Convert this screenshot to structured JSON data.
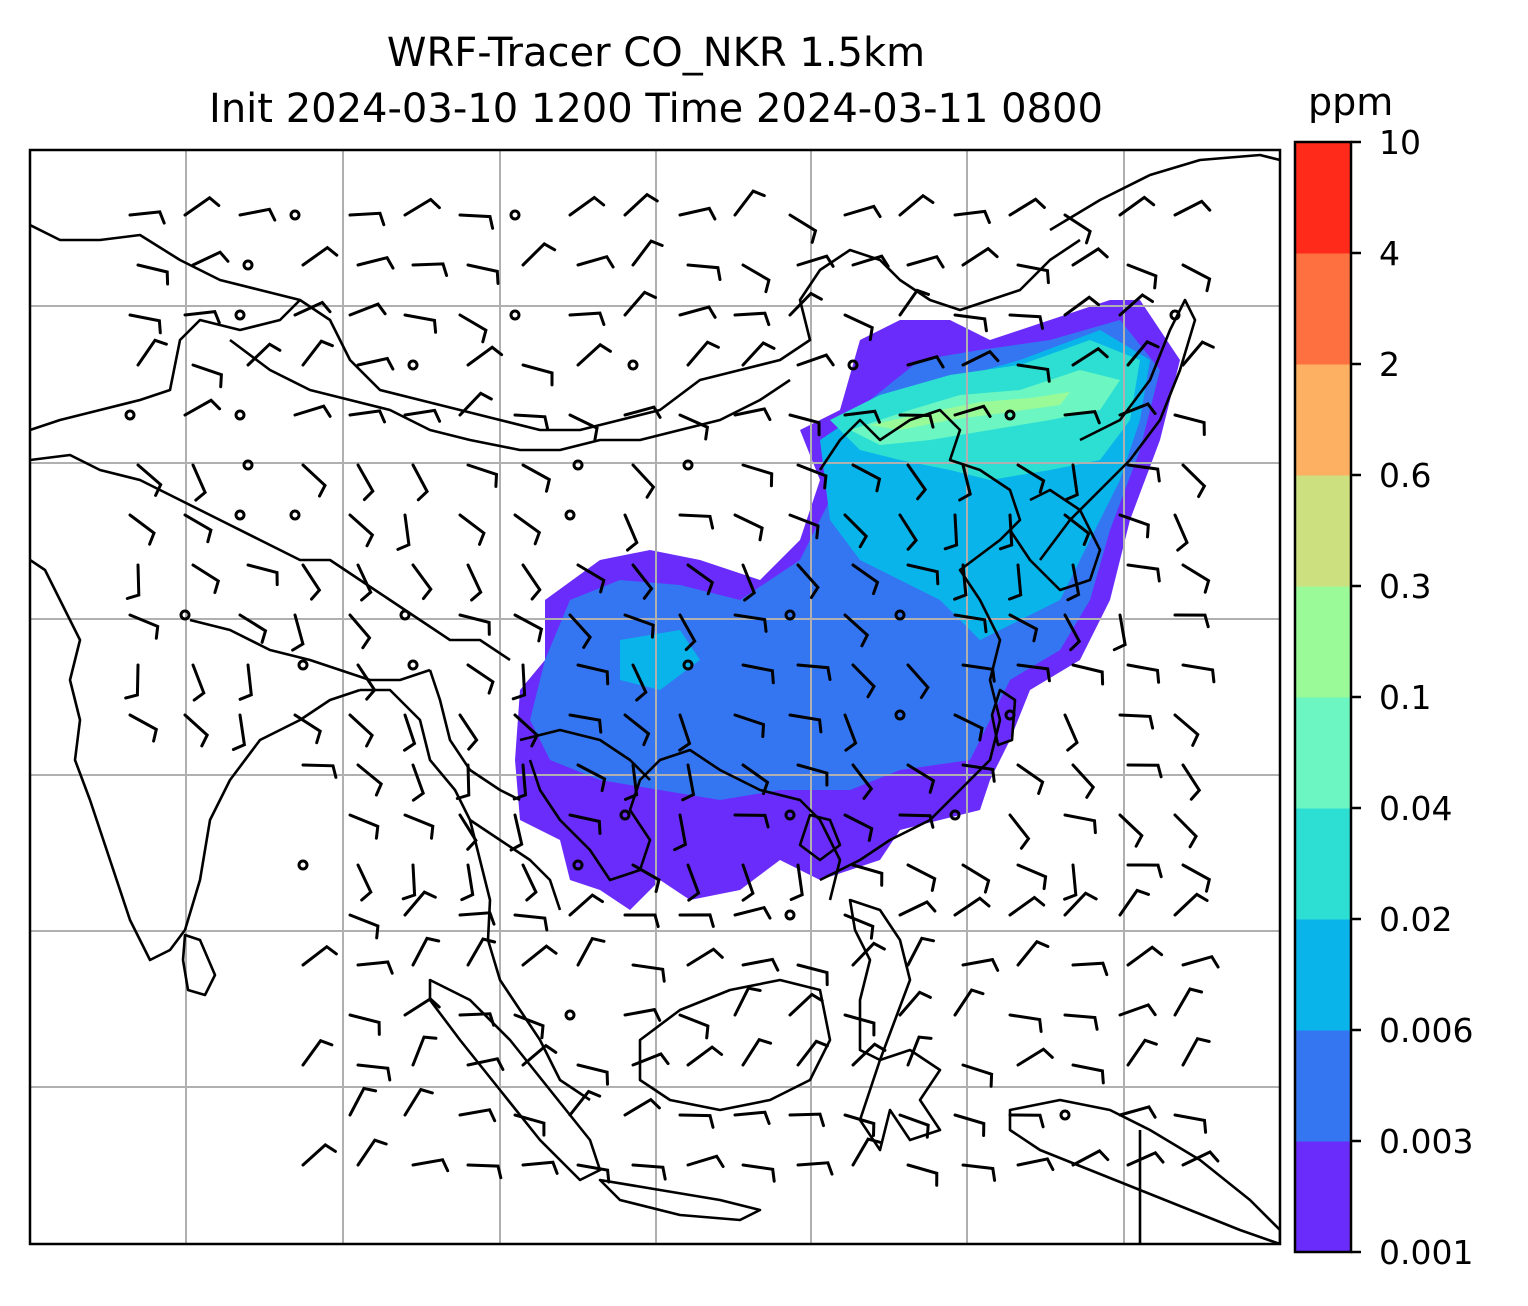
{
  "title": {
    "line1": "WRF-Tracer CO_NKR 1.5km",
    "line2": "Init 2024-03-10 1200 Time 2024-03-11 0800"
  },
  "colorbar": {
    "units": "ppm",
    "levels": [
      "0.001",
      "0.003",
      "0.006",
      "0.02",
      "0.04",
      "0.1",
      "0.3",
      "0.6",
      "2",
      "4",
      "10"
    ],
    "colors": [
      "#6a2cfa",
      "#3476f2",
      "#08b4ea",
      "#2ddfd2",
      "#6cf7c2",
      "#9afa98",
      "#cce080",
      "#fdaf62",
      "#ff7040",
      "#ff2a1a"
    ]
  },
  "map": {
    "field": "CO tracer concentration",
    "overlays": [
      "coastlines",
      "country borders",
      "lat-lon gridlines",
      "wind barbs"
    ],
    "grid": true
  }
}
